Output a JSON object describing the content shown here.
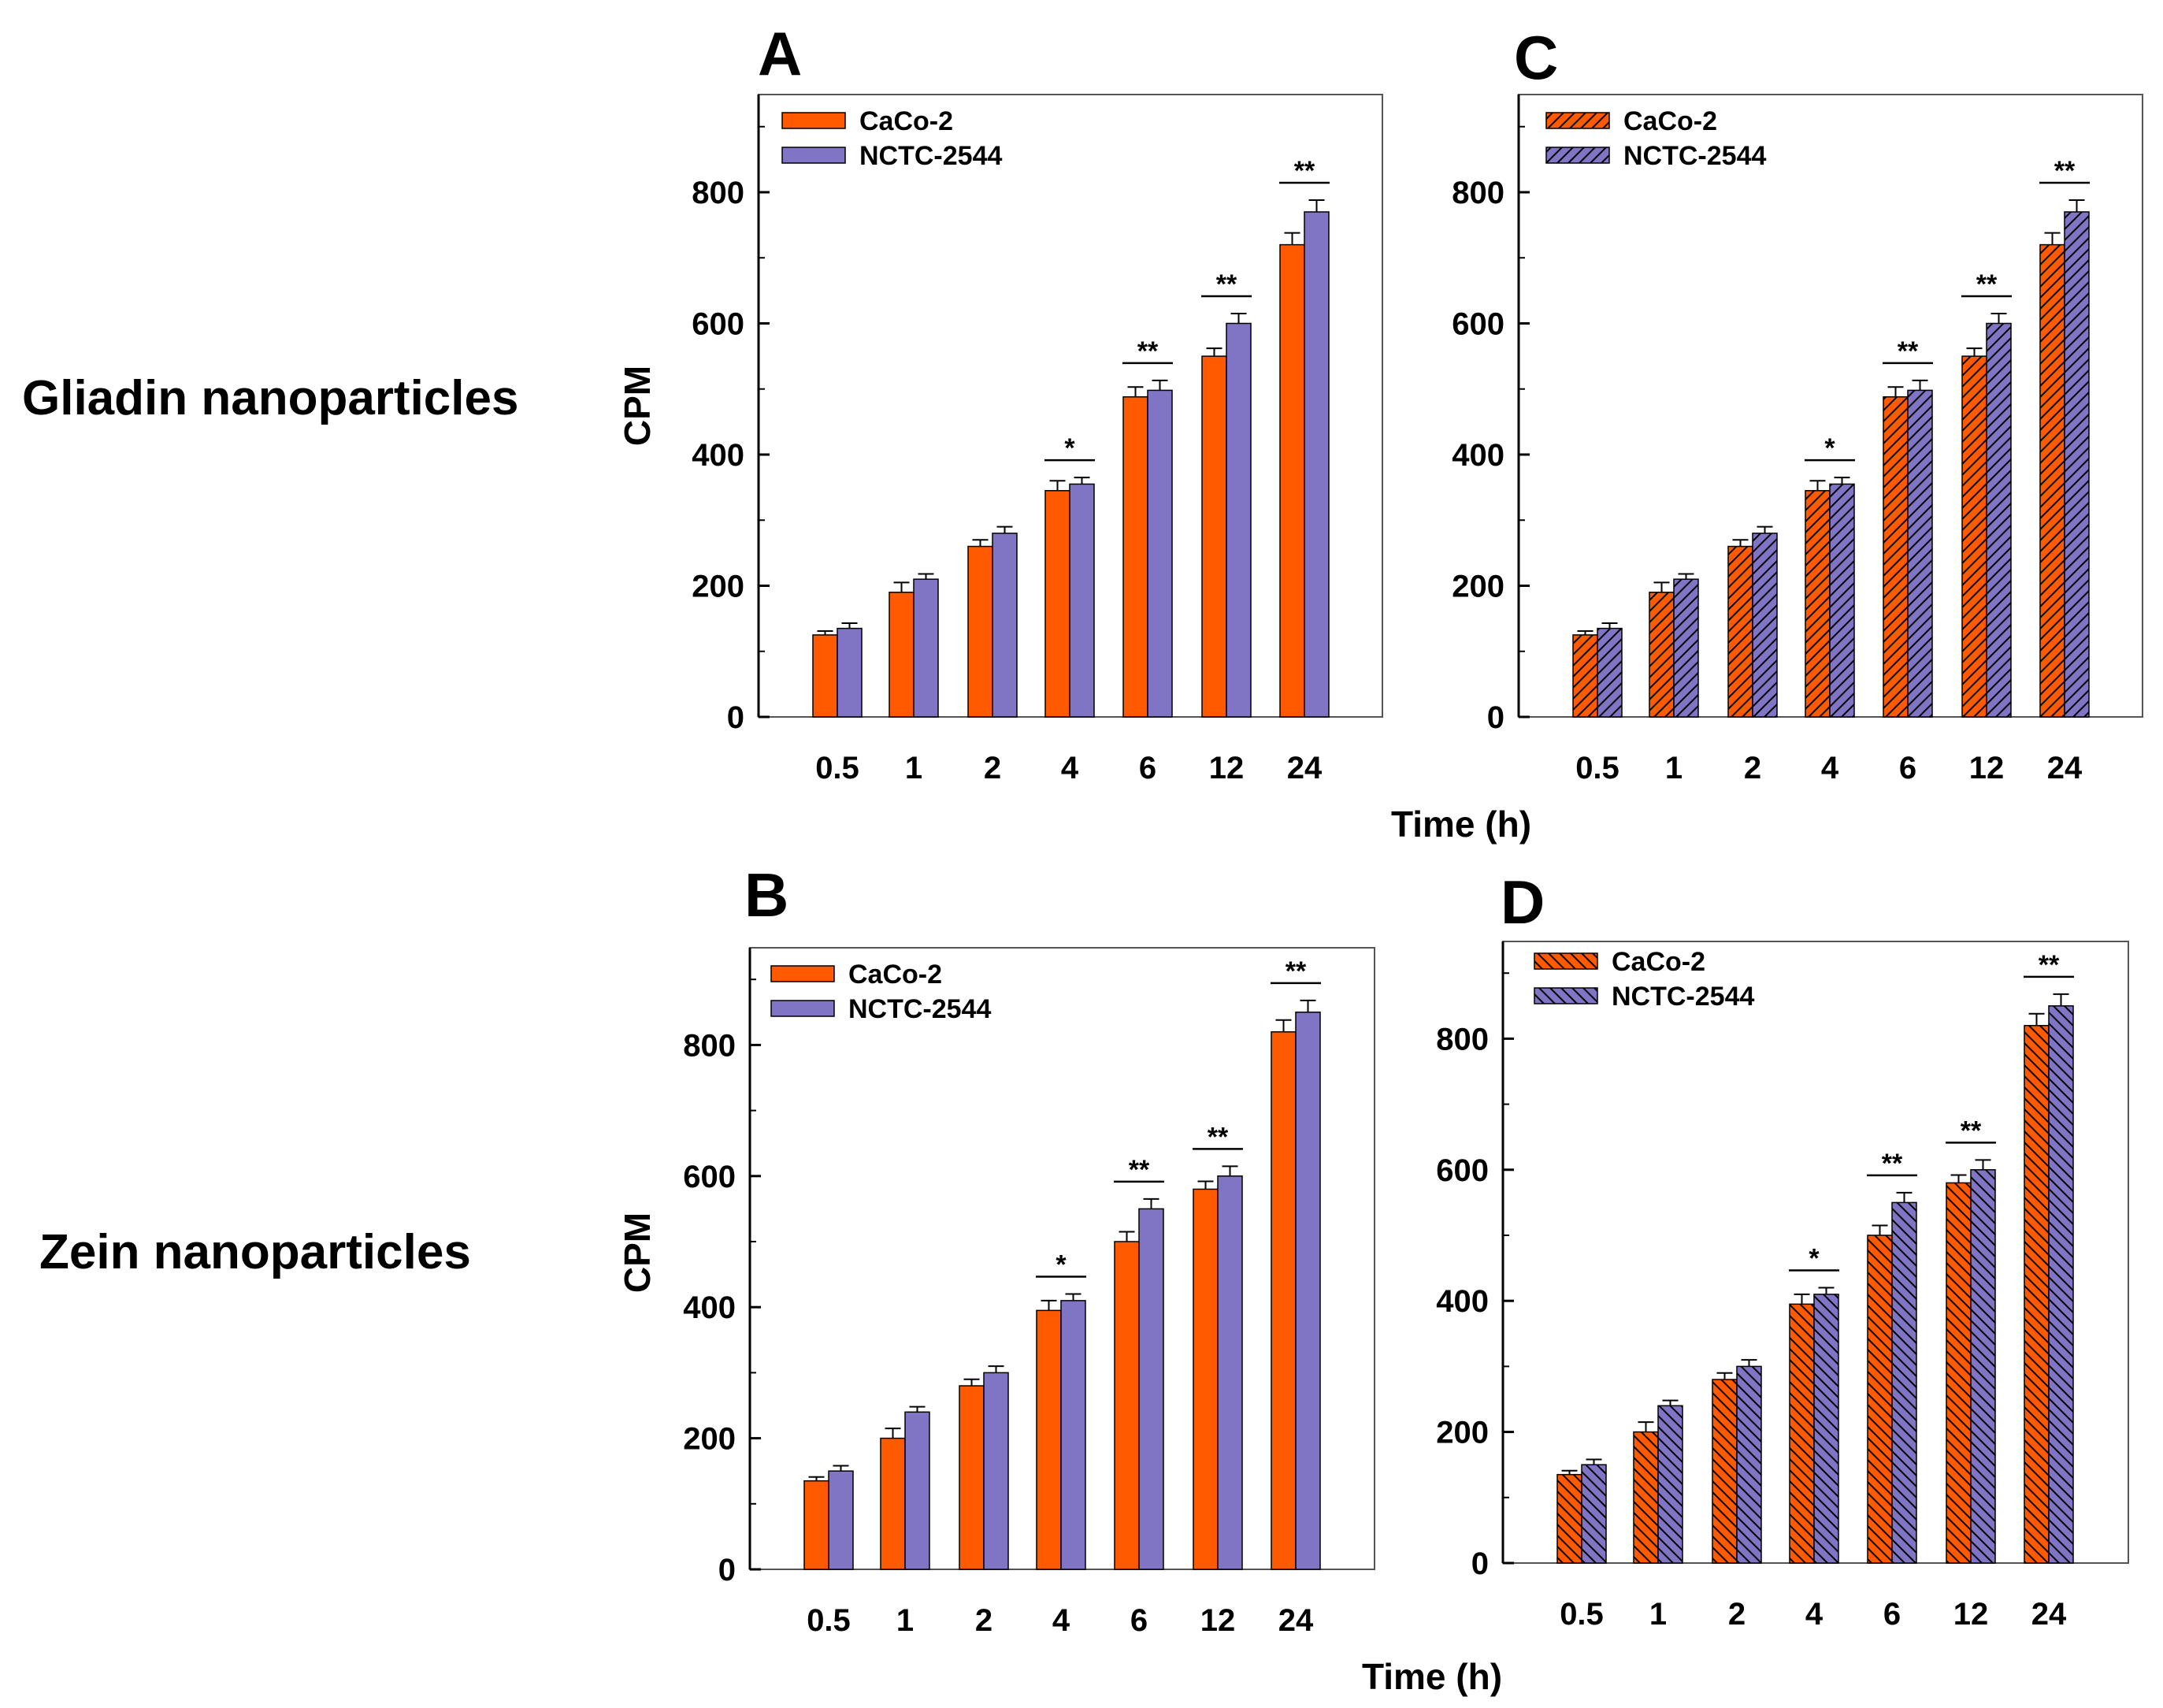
{
  "row_labels": [
    "Gliadin nanoparticles",
    "Zein nanoparticles"
  ],
  "colors": {
    "caco2": "#ff5a00",
    "nctc": "#8074c4",
    "edge": "#000000",
    "frame": "#555555"
  },
  "chart_data": [
    {
      "panel": "A",
      "type": "bar",
      "pattern": "solid",
      "categories": [
        "0.5",
        "1",
        "2",
        "4",
        "6",
        "12",
        "24"
      ],
      "series": [
        {
          "name": "CaCo-2",
          "values": [
            125,
            190,
            260,
            345,
            488,
            550,
            720
          ],
          "errors": [
            6,
            15,
            10,
            15,
            15,
            12,
            18
          ]
        },
        {
          "name": "NCTC-2544",
          "values": [
            135,
            210,
            280,
            355,
            498,
            600,
            770
          ],
          "errors": [
            8,
            8,
            10,
            10,
            15,
            15,
            18
          ]
        }
      ],
      "significance": [
        "",
        "",
        "",
        "*",
        "**",
        "**",
        "**"
      ],
      "ylabel": "CPM",
      "xlabel": "",
      "ylim": [
        0,
        950
      ],
      "yticks": [
        0,
        200,
        400,
        600,
        800
      ],
      "legend": "top-left"
    },
    {
      "panel": "C",
      "type": "bar",
      "pattern": "hatch-forward",
      "categories": [
        "0.5",
        "1",
        "2",
        "4",
        "6",
        "12",
        "24"
      ],
      "series": [
        {
          "name": "CaCo-2",
          "values": [
            125,
            190,
            260,
            345,
            488,
            550,
            720
          ],
          "errors": [
            6,
            15,
            10,
            15,
            15,
            12,
            18
          ]
        },
        {
          "name": "NCTC-2544",
          "values": [
            135,
            210,
            280,
            355,
            498,
            600,
            770
          ],
          "errors": [
            8,
            8,
            10,
            10,
            15,
            15,
            18
          ]
        }
      ],
      "significance": [
        "",
        "",
        "",
        "*",
        "**",
        "**",
        "**"
      ],
      "ylabel": "",
      "xlabel": "Time (h)",
      "ylim": [
        0,
        950
      ],
      "yticks": [
        0,
        200,
        400,
        600,
        800
      ],
      "legend": "top-left"
    },
    {
      "panel": "B",
      "type": "bar",
      "pattern": "solid",
      "categories": [
        "0.5",
        "1",
        "2",
        "4",
        "6",
        "12",
        "24"
      ],
      "series": [
        {
          "name": "CaCo-2",
          "values": [
            135,
            200,
            280,
            395,
            500,
            580,
            820
          ],
          "errors": [
            6,
            15,
            10,
            15,
            15,
            12,
            18
          ]
        },
        {
          "name": "NCTC-2544",
          "values": [
            150,
            240,
            300,
            410,
            550,
            600,
            850
          ],
          "errors": [
            8,
            8,
            10,
            10,
            15,
            15,
            18
          ]
        }
      ],
      "significance": [
        "",
        "",
        "",
        "*",
        "**",
        "**",
        "**"
      ],
      "ylabel": "CPM",
      "xlabel": "",
      "ylim": [
        0,
        950
      ],
      "yticks": [
        0,
        200,
        400,
        600,
        800
      ],
      "legend": "top-left"
    },
    {
      "panel": "D",
      "type": "bar",
      "pattern": "hatch-backward",
      "categories": [
        "0.5",
        "1",
        "2",
        "4",
        "6",
        "12",
        "24"
      ],
      "series": [
        {
          "name": "CaCo-2",
          "values": [
            135,
            200,
            280,
            395,
            500,
            580,
            820
          ],
          "errors": [
            6,
            15,
            10,
            15,
            15,
            12,
            18
          ]
        },
        {
          "name": "NCTC-2544",
          "values": [
            150,
            240,
            300,
            410,
            550,
            600,
            850
          ],
          "errors": [
            8,
            8,
            10,
            10,
            15,
            15,
            18
          ]
        }
      ],
      "significance": [
        "",
        "",
        "",
        "*",
        "**",
        "**",
        "**"
      ],
      "ylabel": "",
      "xlabel": "Time (h)",
      "ylim": [
        0,
        950
      ],
      "yticks": [
        0,
        200,
        400,
        600,
        800
      ],
      "legend": "top-left"
    }
  ]
}
